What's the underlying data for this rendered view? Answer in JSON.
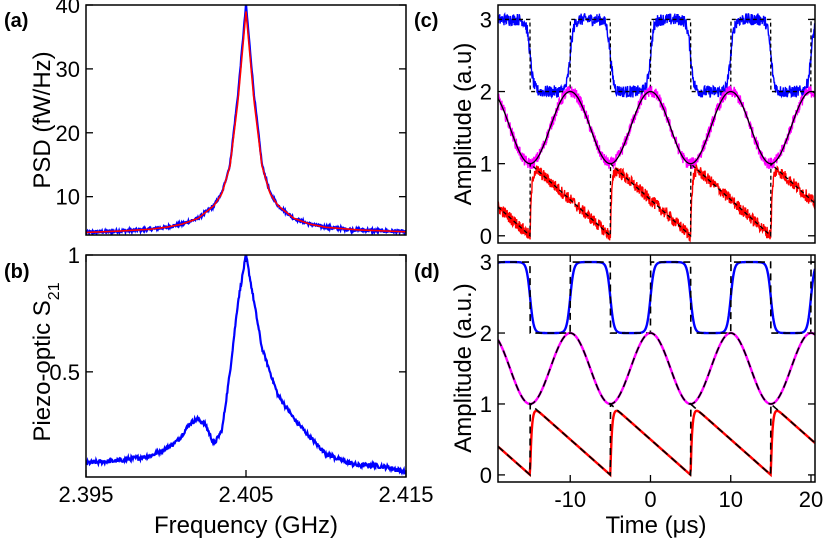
{
  "colors": {
    "blue": "#0000ff",
    "red": "#ff0000",
    "magenta": "#ff00ff",
    "black": "#000000"
  },
  "chart_data": [
    {
      "id": "a",
      "panel_label": "(a)",
      "type": "line",
      "xlabel": "",
      "ylabel": "PSD (fW/Hz)",
      "xlim": [
        2.395,
        2.415
      ],
      "ylim": [
        4,
        40
      ],
      "yticks": [
        10,
        20,
        30,
        40
      ],
      "xticks": [],
      "grid": false,
      "series": [
        {
          "color": "#0000ff",
          "style": "noisy",
          "x": [
            2.395,
            2.397,
            2.399,
            2.4,
            2.401,
            2.402,
            2.403,
            2.4035,
            2.404,
            2.4045,
            2.405,
            2.4055,
            2.406,
            2.4065,
            2.407,
            2.408,
            2.409,
            2.41,
            2.412,
            2.415
          ],
          "y": [
            4.4,
            4.6,
            4.9,
            5.2,
            5.7,
            6.6,
            8.6,
            10.6,
            15.0,
            26.0,
            40.0,
            26.0,
            15.0,
            10.6,
            8.6,
            6.6,
            5.7,
            5.2,
            4.8,
            4.5
          ]
        },
        {
          "color": "#ff0000",
          "style": "smooth",
          "x": [
            2.395,
            2.397,
            2.399,
            2.4,
            2.401,
            2.402,
            2.403,
            2.4035,
            2.404,
            2.4045,
            2.405,
            2.4055,
            2.406,
            2.4065,
            2.407,
            2.408,
            2.409,
            2.41,
            2.412,
            2.415
          ],
          "y": [
            4.4,
            4.6,
            4.9,
            5.2,
            5.7,
            6.6,
            8.6,
            10.5,
            14.8,
            25.0,
            39.0,
            25.0,
            14.8,
            10.5,
            8.6,
            6.6,
            5.7,
            5.2,
            4.8,
            4.5
          ]
        }
      ]
    },
    {
      "id": "b",
      "panel_label": "(b)",
      "type": "line",
      "xlabel": "Frequency (GHz)",
      "ylabel": "Piezo-optic S",
      "ylabel_sub": "21",
      "xlim": [
        2.395,
        2.415
      ],
      "ylim": [
        0.05,
        1.0
      ],
      "xticks": [
        2.395,
        2.405,
        2.415
      ],
      "xticklabels": [
        "2.395",
        "2.405",
        "2.415"
      ],
      "yticks": [
        0.5,
        1
      ],
      "yticklabels": [
        "0.5",
        "1"
      ],
      "grid": false,
      "series": [
        {
          "color": "#0000ff",
          "style": "noisy",
          "x": [
            2.395,
            2.397,
            2.399,
            2.4,
            2.4008,
            2.4015,
            2.402,
            2.4025,
            2.403,
            2.4035,
            2.404,
            2.4045,
            2.405,
            2.4055,
            2.406,
            2.407,
            2.408,
            2.409,
            2.41,
            2.411,
            2.412,
            2.413,
            2.414,
            2.415
          ],
          "y": [
            0.11,
            0.12,
            0.14,
            0.17,
            0.21,
            0.28,
            0.3,
            0.27,
            0.19,
            0.25,
            0.5,
            0.8,
            1.0,
            0.8,
            0.6,
            0.4,
            0.3,
            0.22,
            0.15,
            0.12,
            0.1,
            0.1,
            0.09,
            0.07
          ]
        }
      ]
    },
    {
      "id": "c",
      "panel_label": "(c)",
      "type": "line",
      "xlabel": "",
      "ylabel": "Amplitude (a.u)",
      "xlim": [
        -19,
        20.5
      ],
      "ylim": [
        -0.1,
        3.2
      ],
      "yticks": [
        0,
        1,
        2,
        3
      ],
      "yticklabels": [
        "0",
        "1",
        "2",
        "3"
      ],
      "xticks": [],
      "grid": false,
      "waveform_period_us": 10,
      "series": [
        {
          "color": "#0000ff",
          "shape": "square",
          "offset": 2.0,
          "amplitude": 1.0,
          "noisy": true
        },
        {
          "color": "#ff00ff",
          "shape": "sine",
          "offset": 1.0,
          "amplitude": 1.0,
          "noisy": true
        },
        {
          "color": "#ff0000",
          "shape": "sawtooth",
          "offset": 0.0,
          "amplitude": 1.0,
          "noisy": true
        }
      ]
    },
    {
      "id": "d",
      "panel_label": "(d)",
      "type": "line",
      "xlabel": "Time (μs)",
      "ylabel": "Amplitude (a.u.)",
      "xlim": [
        -19,
        20.5
      ],
      "ylim": [
        -0.1,
        3.1
      ],
      "xticks": [
        -10,
        0,
        10,
        20
      ],
      "xticklabels": [
        "-10",
        "0",
        "10",
        "20"
      ],
      "yticks": [
        0,
        1,
        2,
        3
      ],
      "yticklabels": [
        "0",
        "1",
        "2",
        "3"
      ],
      "grid": false,
      "waveform_period_us": 10,
      "series": [
        {
          "color": "#0000ff",
          "shape": "square",
          "offset": 2.0,
          "amplitude": 1.0,
          "noisy": false
        },
        {
          "color": "#ff00ff",
          "shape": "sine",
          "offset": 1.0,
          "amplitude": 1.0,
          "noisy": false
        },
        {
          "color": "#ff0000",
          "shape": "sawtooth",
          "offset": 0.0,
          "amplitude": 1.0,
          "noisy": false
        }
      ]
    }
  ]
}
